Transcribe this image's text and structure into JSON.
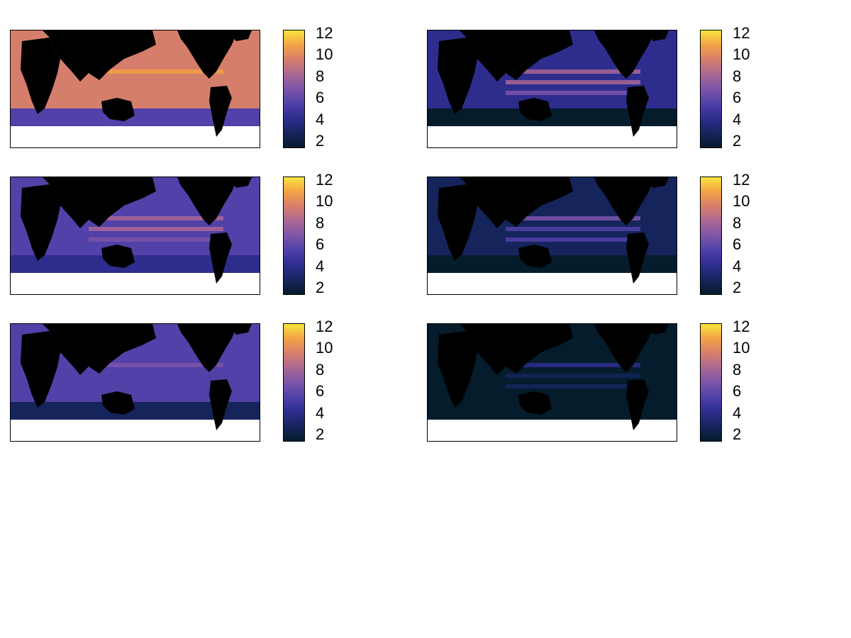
{
  "colorbar": {
    "ticks": [
      "12",
      "10",
      "8",
      "6",
      "4",
      "2"
    ],
    "vmin": 1,
    "vmax": 12.2,
    "colormap": [
      "#041c2b",
      "#16245c",
      "#2e2d8e",
      "#5141a8",
      "#7d55a8",
      "#a86795",
      "#d67e6c",
      "#f3a046",
      "#f8e33e"
    ]
  },
  "panels": [
    {
      "ocean_level": 9.0,
      "equatorial_high": 10.5,
      "southern_level": 5.5,
      "ice_color": "#ffffff"
    },
    {
      "ocean_level": 4.0,
      "equatorial_high": 8.0,
      "southern_level": 1.5,
      "ice_color": "#ffffff"
    },
    {
      "ocean_level": 5.5,
      "equatorial_high": 8.5,
      "southern_level": 3.5,
      "ice_color": "#ffffff"
    },
    {
      "ocean_level": 3.0,
      "equatorial_high": 6.5,
      "southern_level": 1.5,
      "ice_color": "#ffffff"
    },
    {
      "ocean_level": 4.5,
      "equatorial_high": 6.0,
      "southern_level": 1.8,
      "ice_color": "#ffffff"
    },
    {
      "ocean_level": 1.5,
      "equatorial_high": 3.5,
      "southern_level": 1.2,
      "ice_color": "#ffffff"
    }
  ],
  "land_color": "#000000"
}
